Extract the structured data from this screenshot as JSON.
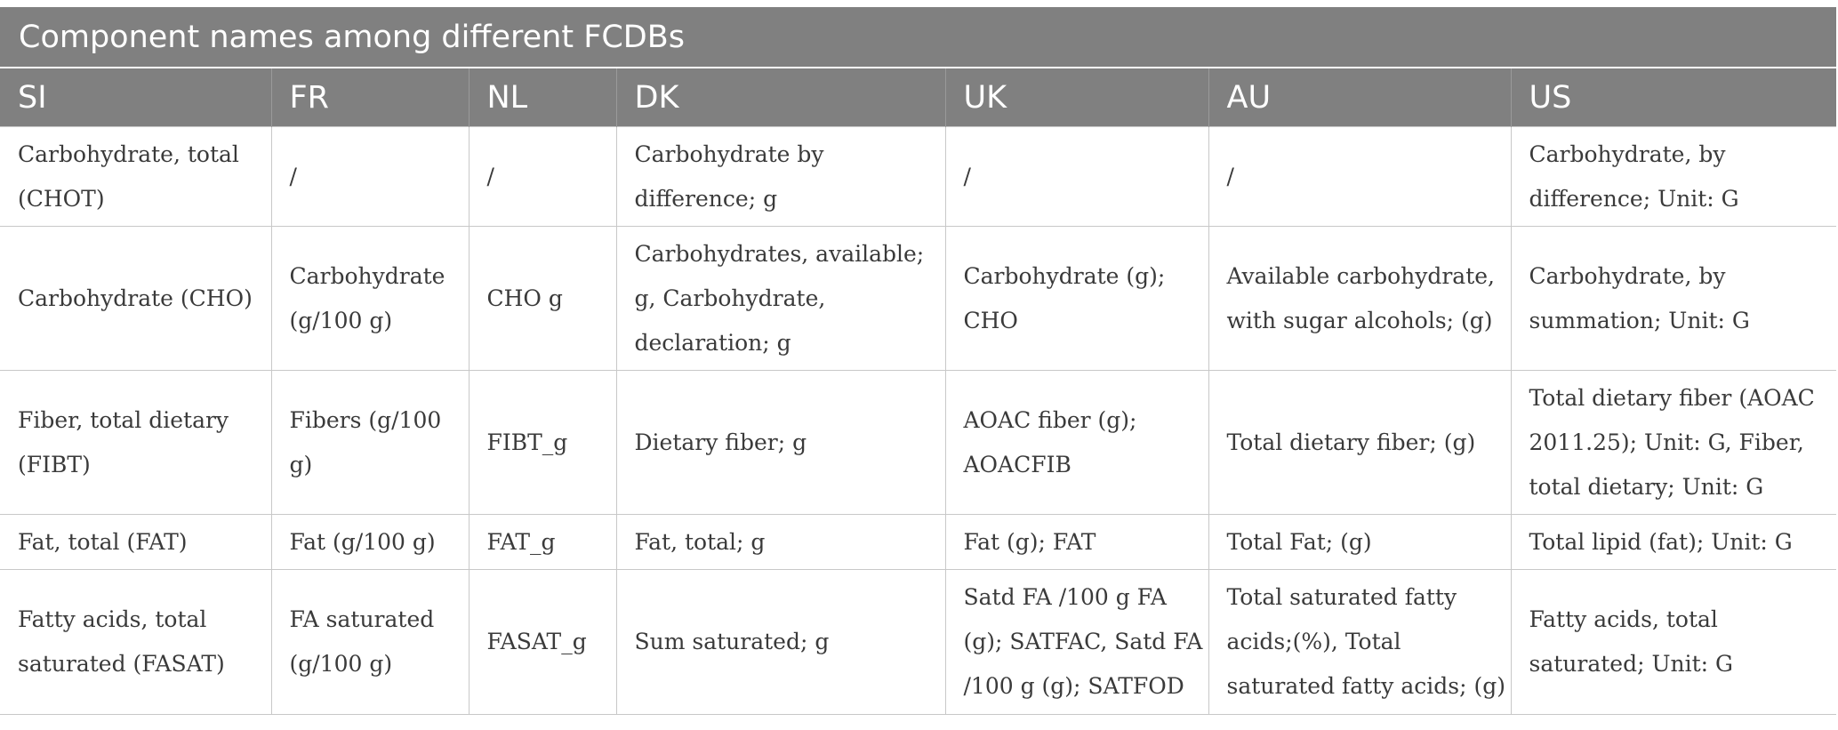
{
  "table": {
    "caption": "Component names among different FCDBs",
    "columns": [
      "SI",
      "FR",
      "NL",
      "DK",
      "UK",
      "AU",
      "US"
    ],
    "rows": [
      [
        "Carbohydrate, total (CHOT)",
        "/",
        "/",
        "Carbohydrate by difference; g",
        "/",
        "/",
        "Carbohydrate, by difference; Unit: G"
      ],
      [
        "Carbohydrate (CHO)",
        "Carbohydrate (g/100 g)",
        "CHO g",
        "Carbohydrates, available; g, Carbohydrate, declaration; g",
        "Carbohydrate (g); CHO",
        "Available carbohydrate, with sugar alcohols; (g)",
        "Carbohydrate, by summation; Unit: G"
      ],
      [
        "Fiber, total dietary (FIBT)",
        "Fibers (g/100 g)",
        "FIBT_g",
        "Dietary fiber; g",
        "AOAC fiber (g); AOACFIB",
        "Total dietary fiber; (g)",
        "Total dietary fiber (AOAC 2011.25); Unit: G, Fiber, total dietary; Unit: G"
      ],
      [
        "Fat, total (FAT)",
        "Fat (g/100 g)",
        "FAT_g",
        "Fat, total; g",
        "Fat (g); FAT",
        "Total Fat; (g)",
        "Total lipid (fat); Unit: G"
      ],
      [
        "Fatty acids, total saturated (FASAT)",
        "FA saturated (g/100 g)",
        "FASAT_g",
        "Sum saturated; g",
        "Satd FA /100 g FA (g); SATFAC, Satd FA /100 g (g); SATFOD",
        "Total saturated fatty acids;(%), Total saturated fatty acids; (g)",
        "Fatty acids, total saturated; Unit: G"
      ]
    ]
  }
}
